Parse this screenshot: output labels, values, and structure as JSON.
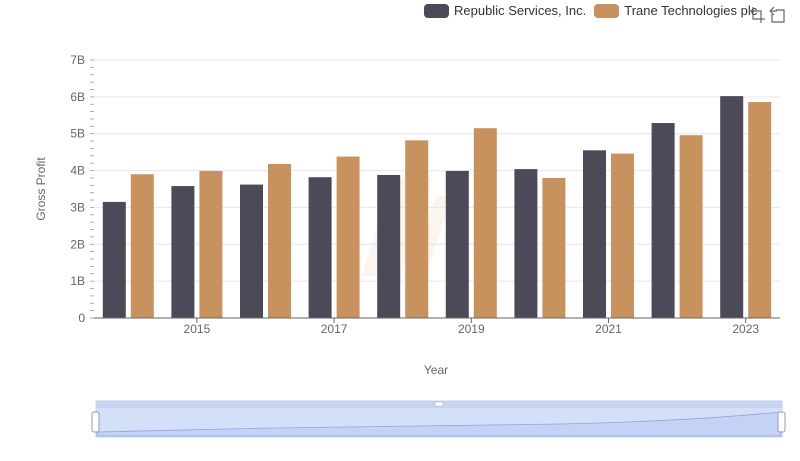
{
  "legend": {
    "items": [
      {
        "label": "Republic Services, Inc.",
        "color": "#4a4a58"
      },
      {
        "label": "Trane Technologies plc",
        "color": "#c8925f"
      }
    ]
  },
  "toolbar": {
    "zoom_icon": "zoom-select-icon",
    "reset_icon": "zoom-reset-icon"
  },
  "chart_data": {
    "type": "bar",
    "title": "",
    "xlabel": "Year",
    "ylabel": "Gross Profit",
    "ylim": [
      0,
      7000000000
    ],
    "yticks": [
      "0",
      "1B",
      "2B",
      "3B",
      "4B",
      "5B",
      "6B",
      "7B"
    ],
    "categories": [
      "2014",
      "2015",
      "2016",
      "2017",
      "2018",
      "2019",
      "2020",
      "2021",
      "2022",
      "2023"
    ],
    "xtick_labels": [
      "2015",
      "2017",
      "2019",
      "2021",
      "2023"
    ],
    "series": [
      {
        "name": "Republic Services, Inc.",
        "color": "#4a4a58",
        "values": [
          3150000000,
          3580000000,
          3620000000,
          3820000000,
          3880000000,
          3990000000,
          4040000000,
          4550000000,
          5290000000,
          6020000000
        ]
      },
      {
        "name": "Trane Technologies plc",
        "color": "#c8925f",
        "values": [
          3900000000,
          3990000000,
          4180000000,
          4380000000,
          4820000000,
          5150000000,
          3800000000,
          4460000000,
          4960000000,
          5860000000
        ]
      }
    ],
    "grid": true,
    "legend_position": "top-right",
    "zoom_slider": {
      "start": 0,
      "end": 100
    }
  }
}
